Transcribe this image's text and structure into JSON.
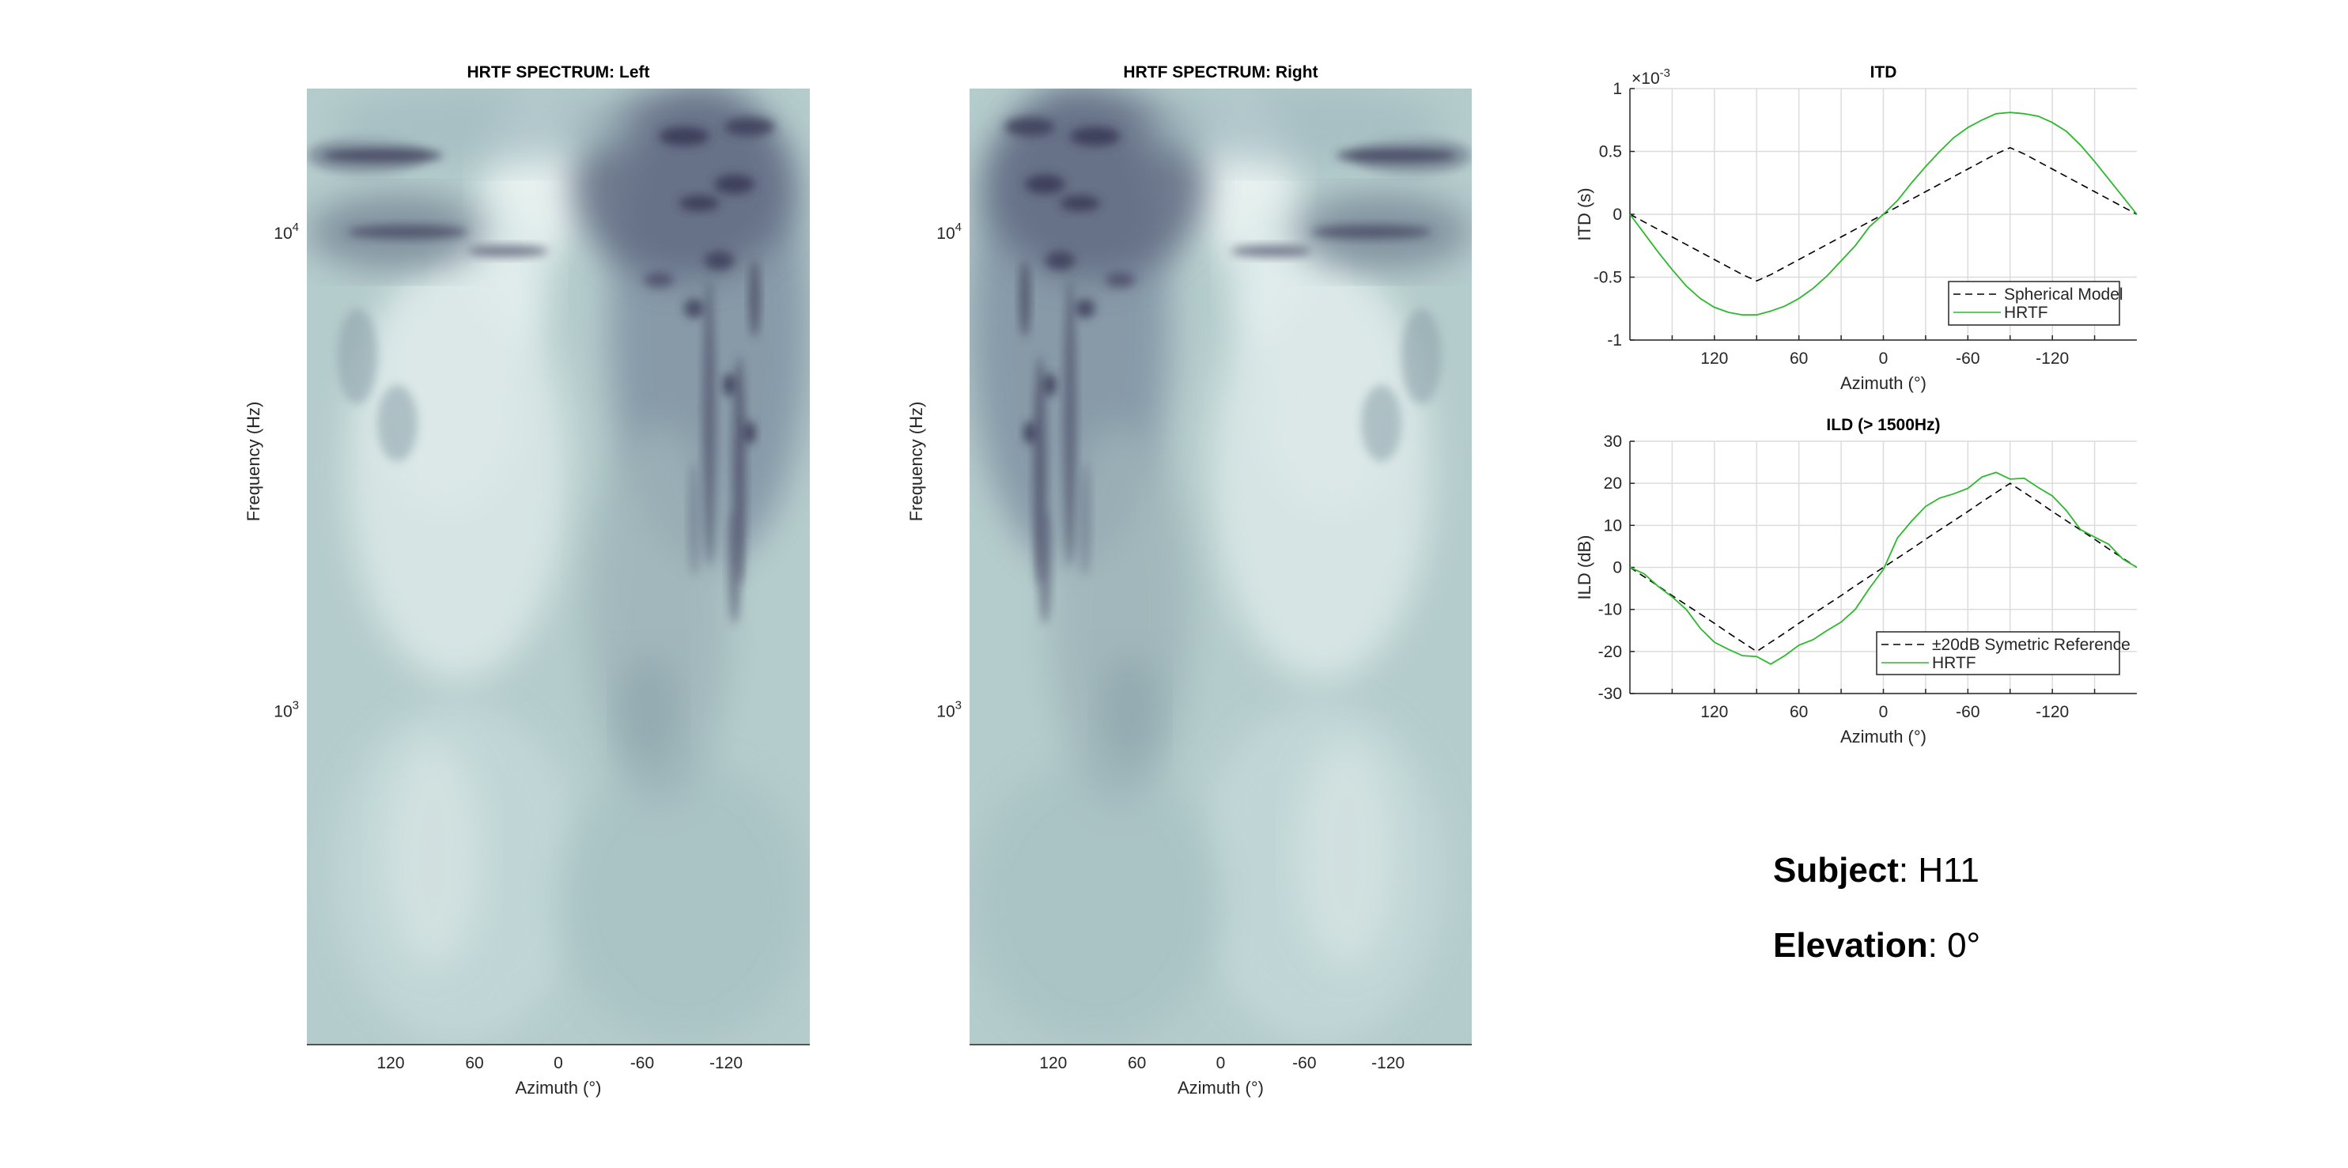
{
  "chart_data": [
    {
      "type": "heatmap",
      "title": "HRTF SPECTRUM: Left",
      "xlabel": "Azimuth (°)",
      "ylabel": "Frequency (Hz)",
      "xlim": [
        180,
        -180
      ],
      "x_ticks": [
        120,
        60,
        0,
        -60,
        -120
      ],
      "ylim": [
        200,
        20000
      ],
      "yscale": "log",
      "y_ticks": [
        {
          "base": "10",
          "exp": "3",
          "value": 1000
        },
        {
          "base": "10",
          "exp": "4",
          "value": 10000
        }
      ],
      "colormap": {
        "low": "#3b3a57",
        "mid": "#9fb8bc",
        "high": "#e3eeee"
      }
    },
    {
      "type": "heatmap",
      "title": "HRTF SPECTRUM: Right",
      "xlabel": "Azimuth (°)",
      "ylabel": "Frequency (Hz)",
      "xlim": [
        180,
        -180
      ],
      "x_ticks": [
        120,
        60,
        0,
        -60,
        -120
      ],
      "ylim": [
        200,
        20000
      ],
      "yscale": "log",
      "y_ticks": [
        {
          "base": "10",
          "exp": "3",
          "value": 1000
        },
        {
          "base": "10",
          "exp": "4",
          "value": 10000
        }
      ],
      "colormap": {
        "low": "#3b3a57",
        "mid": "#9fb8bc",
        "high": "#e3eeee"
      }
    },
    {
      "type": "line",
      "title": "ITD",
      "xlabel": "Azimuth (°)",
      "ylabel": "ITD (s)",
      "y_exponent": "×10",
      "y_exponent_power": "-3",
      "xlim": [
        180,
        -180
      ],
      "ylim": [
        -1,
        1
      ],
      "x_ticks": [
        120,
        60,
        0,
        -60,
        -120
      ],
      "y_ticks": [
        "-1",
        "-0.5",
        "0",
        "0.5",
        "1"
      ],
      "grid": true,
      "legend": "bottom-right",
      "x": [
        180,
        170,
        160,
        150,
        140,
        130,
        120,
        110,
        100,
        90,
        80,
        70,
        60,
        50,
        40,
        30,
        20,
        10,
        0,
        -10,
        -20,
        -30,
        -40,
        -50,
        -60,
        -70,
        -80,
        -90,
        -100,
        -110,
        -120,
        -130,
        -140,
        -150,
        -160,
        -170,
        -180
      ],
      "series": [
        {
          "name": "Spherical Model",
          "color": "#000000",
          "style": "dashed",
          "values": [
            0,
            -0.06,
            -0.12,
            -0.18,
            -0.24,
            -0.3,
            -0.36,
            -0.42,
            -0.48,
            -0.53,
            -0.48,
            -0.42,
            -0.36,
            -0.3,
            -0.24,
            -0.18,
            -0.12,
            -0.06,
            0,
            0.06,
            0.12,
            0.18,
            0.24,
            0.3,
            0.36,
            0.42,
            0.48,
            0.53,
            0.48,
            0.42,
            0.36,
            0.3,
            0.24,
            0.18,
            0.12,
            0.06,
            0
          ]
        },
        {
          "name": "HRTF",
          "color": "#2db82d",
          "style": "solid",
          "values": [
            0,
            -0.15,
            -0.3,
            -0.44,
            -0.57,
            -0.67,
            -0.74,
            -0.78,
            -0.8,
            -0.8,
            -0.77,
            -0.73,
            -0.67,
            -0.59,
            -0.49,
            -0.37,
            -0.25,
            -0.1,
            0,
            0.11,
            0.25,
            0.38,
            0.5,
            0.61,
            0.69,
            0.75,
            0.8,
            0.81,
            0.8,
            0.78,
            0.73,
            0.66,
            0.55,
            0.42,
            0.28,
            0.14,
            0
          ]
        }
      ]
    },
    {
      "type": "line",
      "title": "ILD (> 1500Hz)",
      "xlabel": "Azimuth (°)",
      "ylabel": "ILD (dB)",
      "xlim": [
        180,
        -180
      ],
      "ylim": [
        -30,
        30
      ],
      "x_ticks": [
        120,
        60,
        0,
        -60,
        -120
      ],
      "y_ticks": [
        "-30",
        "-20",
        "-10",
        "0",
        "10",
        "20",
        "30"
      ],
      "grid": true,
      "legend": "bottom-right",
      "x": [
        180,
        170,
        160,
        150,
        140,
        130,
        120,
        110,
        100,
        90,
        80,
        70,
        60,
        50,
        40,
        30,
        20,
        10,
        0,
        -10,
        -20,
        -30,
        -40,
        -50,
        -60,
        -70,
        -80,
        -90,
        -100,
        -110,
        -120,
        -130,
        -140,
        -150,
        -160,
        -170,
        -180
      ],
      "series": [
        {
          "name": "±20dB Symetric Reference",
          "color": "#000000",
          "style": "dashed",
          "values": [
            0,
            -2.2,
            -4.4,
            -6.7,
            -8.9,
            -11.1,
            -13.3,
            -15.6,
            -17.8,
            -20,
            -17.8,
            -15.6,
            -13.3,
            -11.1,
            -8.9,
            -6.7,
            -4.4,
            -2.2,
            0,
            2.2,
            4.4,
            6.7,
            8.9,
            11.1,
            13.3,
            15.6,
            17.8,
            20,
            17.8,
            15.6,
            13.3,
            11.1,
            8.9,
            6.7,
            4.4,
            2.2,
            0
          ]
        },
        {
          "name": "HRTF",
          "color": "#2db82d",
          "style": "solid",
          "values": [
            0,
            -1.5,
            -4.5,
            -7,
            -10,
            -14.5,
            -17.8,
            -19.5,
            -21,
            -21.2,
            -23,
            -21,
            -18.5,
            -17.2,
            -15,
            -13,
            -10,
            -5,
            -0.5,
            7,
            11,
            14.5,
            16.5,
            17.5,
            18.8,
            21.5,
            22.6,
            21,
            21.2,
            19,
            17,
            13.5,
            9,
            7.2,
            5.5,
            2,
            0
          ]
        }
      ]
    }
  ],
  "info": {
    "subject_label": "Subject",
    "subject_value": ": H11",
    "elevation_label": "Elevation",
    "elevation_value": ": 0°"
  }
}
